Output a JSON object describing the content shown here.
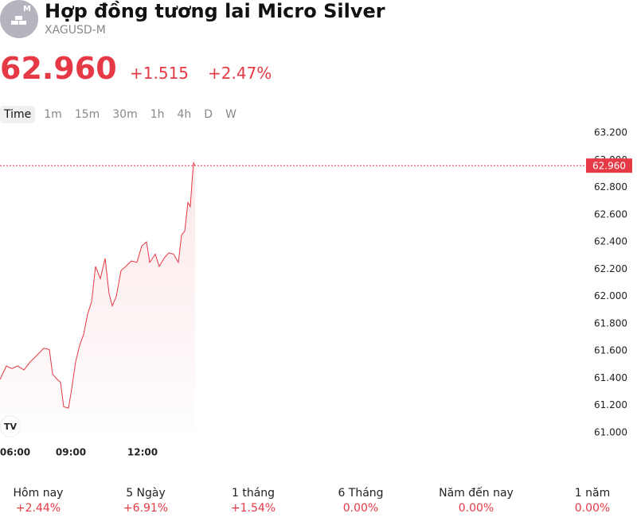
{
  "header": {
    "badge": "M",
    "title": "Hợp đồng tương lai Micro Silver",
    "symbol": "XAGUSD-M",
    "price": "62.960",
    "change": "+1.515",
    "change_pct": "+2.47%"
  },
  "timeframes": [
    "Time",
    "1m",
    "15m",
    "30m",
    "1h",
    "4h",
    "D",
    "W"
  ],
  "chart_data": {
    "type": "line",
    "x": [
      0,
      8,
      15,
      22,
      30,
      38,
      45,
      55,
      62,
      66,
      72,
      76,
      80,
      86,
      90,
      95,
      100,
      105,
      110,
      115,
      120,
      126,
      132,
      137,
      141,
      146,
      152,
      158,
      165,
      172,
      178,
      184,
      188,
      195,
      200,
      206,
      212,
      218,
      224,
      228,
      232,
      236,
      239,
      241,
      243,
      245
    ],
    "series": [
      {
        "color": "#e53945",
        "values": [
          61.39,
          61.49,
          61.47,
          61.49,
          61.46,
          61.52,
          61.56,
          61.62,
          61.61,
          61.43,
          61.39,
          61.37,
          61.19,
          61.18,
          61.32,
          61.52,
          61.64,
          61.72,
          61.87,
          61.96,
          62.22,
          62.13,
          62.28,
          62.02,
          61.93,
          62.0,
          62.19,
          62.22,
          62.26,
          62.25,
          62.37,
          62.4,
          62.25,
          62.31,
          62.22,
          62.28,
          62.32,
          62.31,
          62.25,
          62.45,
          62.48,
          62.69,
          62.66,
          62.83,
          62.98,
          62.96
        ]
      }
    ],
    "xlim": [
      0,
      735
    ],
    "xticks": [
      {
        "value": 18,
        "label": "06:00"
      },
      {
        "value": 89,
        "label": "09:00"
      },
      {
        "value": 179,
        "label": "12:00"
      }
    ],
    "ylim": [
      60.9,
      63.3
    ],
    "yticks": [
      {
        "value": 61.0,
        "label": "61.000"
      },
      {
        "value": 61.2,
        "label": "61.200"
      },
      {
        "value": 61.4,
        "label": "61.400"
      },
      {
        "value": 61.6,
        "label": "61.600"
      },
      {
        "value": 61.8,
        "label": "61.800"
      },
      {
        "value": 62.0,
        "label": "62.000"
      },
      {
        "value": 62.2,
        "label": "62.200"
      },
      {
        "value": 62.4,
        "label": "62.400"
      },
      {
        "value": 62.6,
        "label": "62.600"
      },
      {
        "value": 62.8,
        "label": "62.800"
      },
      {
        "value": 63.0,
        "label": "63.000"
      },
      {
        "value": 63.2,
        "label": "63.200"
      }
    ],
    "price_line": {
      "value": 62.96,
      "label": "62.960"
    }
  },
  "performance": [
    {
      "label": "Hôm nay",
      "value": "+2.44%"
    },
    {
      "label": "5 Ngày",
      "value": "+6.91%"
    },
    {
      "label": "1 tháng",
      "value": "+1.54%"
    },
    {
      "label": "6 Tháng",
      "value": "0.00%"
    },
    {
      "label": "Năm đến nay",
      "value": "0.00%"
    },
    {
      "label": "1 năm",
      "value": "0.00%"
    }
  ]
}
